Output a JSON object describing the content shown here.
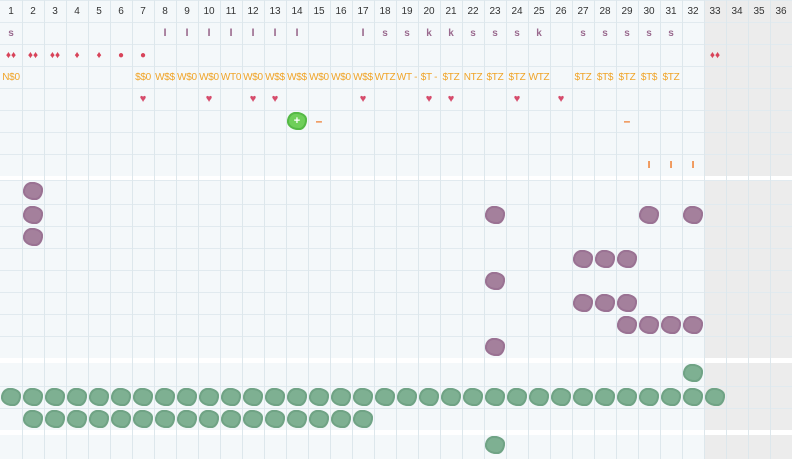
{
  "columns": [
    "1",
    "2",
    "3",
    "4",
    "5",
    "6",
    "7",
    "8",
    "9",
    "10",
    "11",
    "12",
    "13",
    "14",
    "15",
    "16",
    "17",
    "18",
    "19",
    "20",
    "21",
    "22",
    "23",
    "24",
    "25",
    "26",
    "27",
    "28",
    "29",
    "30",
    "31",
    "32",
    "33",
    "34",
    "35",
    "36"
  ],
  "marker_rows": [
    {
      "row": 1,
      "items": [
        {
          "col": 1,
          "kind": "bsym",
          "text": "s"
        },
        {
          "col": 8,
          "kind": "isym",
          "text": "I"
        },
        {
          "col": 9,
          "kind": "isym",
          "text": "I"
        },
        {
          "col": 10,
          "kind": "isym",
          "text": "I"
        },
        {
          "col": 11,
          "kind": "isym",
          "text": "I"
        },
        {
          "col": 12,
          "kind": "isym",
          "text": "I"
        },
        {
          "col": 13,
          "kind": "isym",
          "text": "I"
        },
        {
          "col": 14,
          "kind": "isym",
          "text": "I"
        },
        {
          "col": 17,
          "kind": "isym",
          "text": "I"
        },
        {
          "col": 18,
          "kind": "bsym",
          "text": "s"
        },
        {
          "col": 19,
          "kind": "bsym",
          "text": "s"
        },
        {
          "col": 20,
          "kind": "bsym",
          "text": "k"
        },
        {
          "col": 21,
          "kind": "bsym",
          "text": "k"
        },
        {
          "col": 22,
          "kind": "bsym",
          "text": "s"
        },
        {
          "col": 23,
          "kind": "bsym",
          "text": "s"
        },
        {
          "col": 24,
          "kind": "bsym",
          "text": "s"
        },
        {
          "col": 25,
          "kind": "bsym",
          "text": "k"
        },
        {
          "col": 27,
          "kind": "bsym",
          "text": "s"
        },
        {
          "col": 28,
          "kind": "bsym",
          "text": "s"
        },
        {
          "col": 29,
          "kind": "bsym",
          "text": "s"
        },
        {
          "col": 30,
          "kind": "bsym",
          "text": "s"
        },
        {
          "col": 31,
          "kind": "bsym",
          "text": "s"
        }
      ]
    },
    {
      "row": 2,
      "items": [
        {
          "col": 1,
          "kind": "drop",
          "text": "♦♦"
        },
        {
          "col": 2,
          "kind": "drop",
          "text": "♦♦"
        },
        {
          "col": 3,
          "kind": "drop",
          "text": "♦♦"
        },
        {
          "col": 4,
          "kind": "drop",
          "text": "♦"
        },
        {
          "col": 5,
          "kind": "drop",
          "text": "♦"
        },
        {
          "col": 6,
          "kind": "drop",
          "text": "●"
        },
        {
          "col": 7,
          "kind": "drop",
          "text": "●"
        },
        {
          "col": 33,
          "kind": "drop",
          "text": "♦♦"
        }
      ]
    },
    {
      "row": 3,
      "items": [
        {
          "col": 1,
          "kind": "ltxt",
          "text": "N$0"
        },
        {
          "col": 7,
          "kind": "ltxt",
          "text": "$$0"
        },
        {
          "col": 8,
          "kind": "ltxt",
          "text": "W$$"
        },
        {
          "col": 9,
          "kind": "ltxt",
          "text": "W$0"
        },
        {
          "col": 10,
          "kind": "ltxt",
          "text": "W$0"
        },
        {
          "col": 11,
          "kind": "ltxt",
          "text": "WT0"
        },
        {
          "col": 12,
          "kind": "ltxt",
          "text": "W$0"
        },
        {
          "col": 13,
          "kind": "ltxt",
          "text": "W$$"
        },
        {
          "col": 14,
          "kind": "ltxt",
          "text": "W$$"
        },
        {
          "col": 15,
          "kind": "ltxt",
          "text": "W$0"
        },
        {
          "col": 16,
          "kind": "ltxt",
          "text": "W$0"
        },
        {
          "col": 17,
          "kind": "ltxt",
          "text": "W$$"
        },
        {
          "col": 18,
          "kind": "ltxt",
          "text": "WTZ"
        },
        {
          "col": 19,
          "kind": "ltxt",
          "text": "WT -"
        },
        {
          "col": 20,
          "kind": "ltxt",
          "text": "$T -"
        },
        {
          "col": 21,
          "kind": "ltxt",
          "text": "$TZ"
        },
        {
          "col": 22,
          "kind": "ltxt",
          "text": "NTZ"
        },
        {
          "col": 23,
          "kind": "ltxt",
          "text": "$TZ"
        },
        {
          "col": 24,
          "kind": "ltxt",
          "text": "$TZ"
        },
        {
          "col": 25,
          "kind": "ltxt",
          "text": "WTZ"
        },
        {
          "col": 27,
          "kind": "ltxt",
          "text": "$TZ"
        },
        {
          "col": 28,
          "kind": "ltxt",
          "text": "$T$"
        },
        {
          "col": 29,
          "kind": "ltxt",
          "text": "$TZ"
        },
        {
          "col": 30,
          "kind": "ltxt",
          "text": "$T$"
        },
        {
          "col": 31,
          "kind": "ltxt",
          "text": "$TZ"
        }
      ]
    },
    {
      "row": 4,
      "items": [
        {
          "col": 7,
          "kind": "heart",
          "text": "♥"
        },
        {
          "col": 10,
          "kind": "heart",
          "text": "♥"
        },
        {
          "col": 12,
          "kind": "heart",
          "text": "♥"
        },
        {
          "col": 13,
          "kind": "heart",
          "text": "♥"
        },
        {
          "col": 17,
          "kind": "heart",
          "text": "♥"
        },
        {
          "col": 20,
          "kind": "heart",
          "text": "♥"
        },
        {
          "col": 21,
          "kind": "heart",
          "text": "♥"
        },
        {
          "col": 24,
          "kind": "heart",
          "text": "♥"
        },
        {
          "col": 26,
          "kind": "heart",
          "text": "♥"
        }
      ]
    },
    {
      "row": 5,
      "items": [
        {
          "col": 15,
          "kind": "dash",
          "text": "–"
        },
        {
          "col": 29,
          "kind": "dash",
          "text": "–"
        }
      ]
    },
    {
      "row": 6,
      "items": []
    },
    {
      "row": 7,
      "items": [
        {
          "col": 30,
          "kind": "tick",
          "text": "I"
        },
        {
          "col": 31,
          "kind": "tick",
          "text": "I"
        },
        {
          "col": 32,
          "kind": "tick",
          "text": "I"
        }
      ]
    }
  ],
  "plus_block": {
    "row": 5,
    "col": 14,
    "text": "+"
  },
  "purple_blocks": [
    {
      "row": 8,
      "col": 2
    },
    {
      "row": 9,
      "col": 2
    },
    {
      "row": 9,
      "col": 23
    },
    {
      "row": 9,
      "col": 30
    },
    {
      "row": 9,
      "col": 32
    },
    {
      "row": 10,
      "col": 2
    },
    {
      "row": 11,
      "col": 27
    },
    {
      "row": 11,
      "col": 28
    },
    {
      "row": 11,
      "col": 29
    },
    {
      "row": 12,
      "col": 23
    },
    {
      "row": 13,
      "col": 27
    },
    {
      "row": 13,
      "col": 28
    },
    {
      "row": 13,
      "col": 29
    },
    {
      "row": 14,
      "col": 29
    },
    {
      "row": 14,
      "col": 30
    },
    {
      "row": 14,
      "col": 31
    },
    {
      "row": 14,
      "col": 32
    },
    {
      "row": 15,
      "col": 23
    }
  ],
  "green_blocks": [
    {
      "row": 16,
      "col": 32
    },
    {
      "row": 17,
      "cols": [
        1,
        33
      ]
    },
    {
      "row": 18,
      "cols": [
        2,
        17
      ]
    },
    {
      "row": 19,
      "col": 23
    }
  ],
  "colors": {
    "grid_bg": "#f4f8fa",
    "purple": "#a4809c",
    "green": "#7eb092",
    "plus_green": "#6fcf5a",
    "label_orange": "#f0a428",
    "heart_red": "#d64c6c"
  }
}
